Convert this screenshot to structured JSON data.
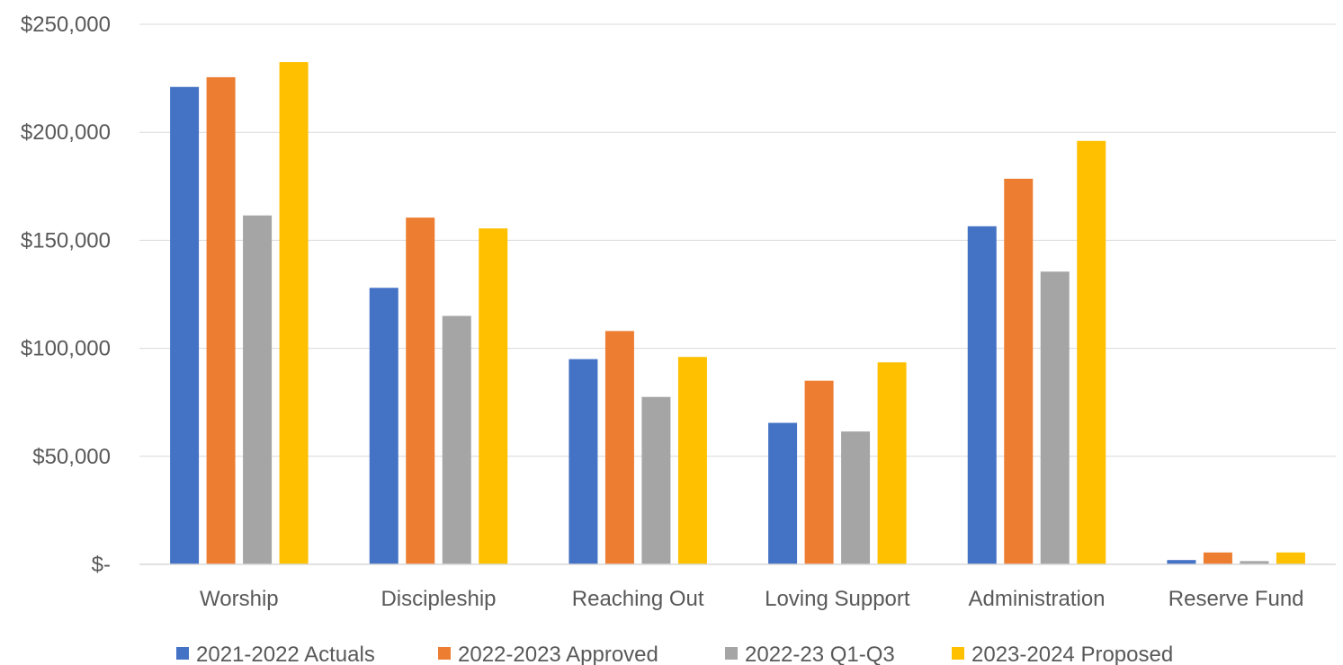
{
  "chart_data": {
    "type": "bar",
    "title": "",
    "xlabel": "",
    "ylabel": "",
    "categories": [
      "Worship",
      "Discipleship",
      "Reaching Out",
      "Loving Support",
      "Administration",
      "Reserve Fund"
    ],
    "series": [
      {
        "name": "2021-2022 Actuals",
        "color": "#4472C4",
        "values": [
          221000,
          128000,
          95000,
          65500,
          156500,
          2000
        ]
      },
      {
        "name": "2022-2023 Approved",
        "color": "#ED7D31",
        "values": [
          225500,
          160500,
          108000,
          85000,
          178500,
          5500
        ]
      },
      {
        "name": "2022-23 Q1-Q3",
        "color": "#A5A5A5",
        "values": [
          161500,
          115000,
          77500,
          61500,
          135500,
          1500
        ]
      },
      {
        "name": "2023-2024 Proposed",
        "color": "#FFC000",
        "values": [
          232500,
          155500,
          96000,
          93500,
          196000,
          5500
        ]
      }
    ],
    "ylim": [
      0,
      250000
    ],
    "yticks": [
      0,
      50000,
      100000,
      150000,
      200000,
      250000
    ],
    "ytick_labels": [
      "$-",
      "$50,000",
      "$100,000",
      "$150,000",
      "$200,000",
      "$250,000"
    ],
    "grid": true,
    "legend_position": "bottom"
  }
}
